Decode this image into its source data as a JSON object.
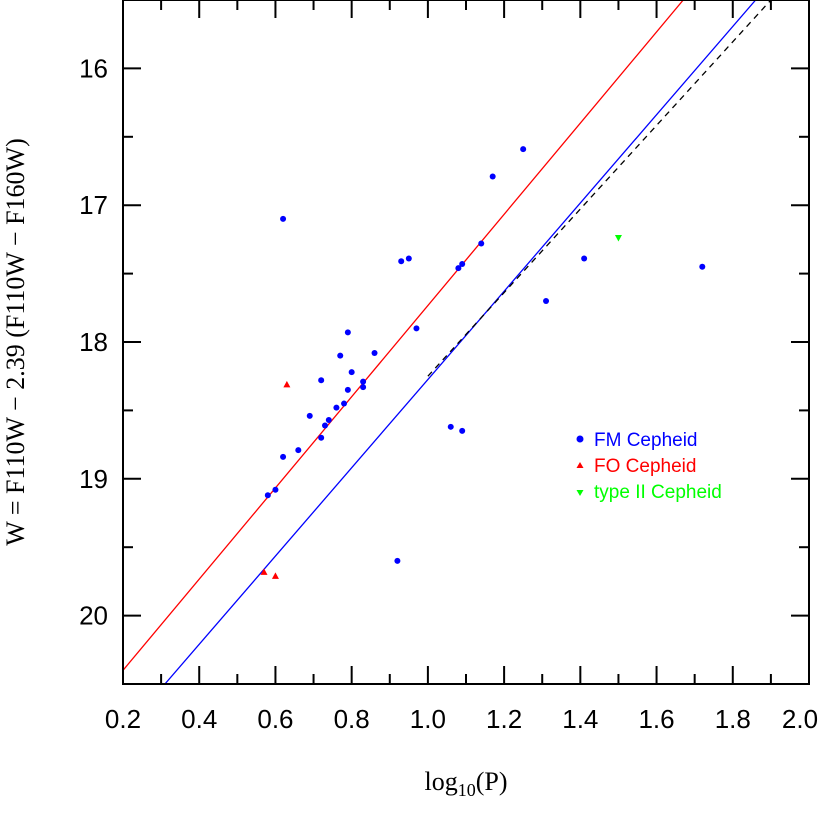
{
  "chart_data": {
    "type": "scatter",
    "xlabel": "log",
    "xlabel_sub": "10",
    "xlabel_tail": "(P)",
    "ylabel": "W = F110W − 2.39 (F110W − F160W)",
    "xlim": [
      0.2,
      2.0
    ],
    "ylim": [
      20.5,
      15.5
    ],
    "y_inverted": true,
    "xticks": [
      "0.2",
      "0.4",
      "0.6",
      "0.8",
      "1.0",
      "1.2",
      "1.4",
      "1.6",
      "1.8",
      "2.0"
    ],
    "yticks": [
      "16",
      "17",
      "18",
      "19",
      "20"
    ],
    "legend_position": "right",
    "series": [
      {
        "name": "FM Cepheid",
        "marker": "circle",
        "color": "#0000ff",
        "points": [
          [
            0.58,
            19.12
          ],
          [
            0.6,
            19.08
          ],
          [
            0.62,
            18.84
          ],
          [
            0.62,
            17.1
          ],
          [
            0.66,
            18.79
          ],
          [
            0.69,
            18.54
          ],
          [
            0.72,
            18.28
          ],
          [
            0.72,
            18.7
          ],
          [
            0.73,
            18.61
          ],
          [
            0.74,
            18.57
          ],
          [
            0.76,
            18.48
          ],
          [
            0.77,
            18.1
          ],
          [
            0.78,
            18.45
          ],
          [
            0.79,
            17.93
          ],
          [
            0.79,
            18.35
          ],
          [
            0.8,
            18.22
          ],
          [
            0.83,
            18.29
          ],
          [
            0.83,
            18.33
          ],
          [
            0.86,
            18.08
          ],
          [
            0.92,
            19.6
          ],
          [
            0.93,
            17.41
          ],
          [
            0.95,
            17.39
          ],
          [
            0.97,
            17.9
          ],
          [
            1.06,
            18.62
          ],
          [
            1.08,
            17.46
          ],
          [
            1.09,
            17.43
          ],
          [
            1.09,
            18.65
          ],
          [
            1.14,
            17.28
          ],
          [
            1.17,
            16.79
          ],
          [
            1.25,
            16.59
          ],
          [
            1.31,
            17.7
          ],
          [
            1.41,
            17.39
          ],
          [
            1.72,
            17.45
          ]
        ]
      },
      {
        "name": "FO Cepheid",
        "marker": "triangle-up",
        "color": "#ff0000",
        "points": [
          [
            0.57,
            19.68
          ],
          [
            0.6,
            19.71
          ],
          [
            0.63,
            18.31
          ]
        ]
      },
      {
        "name": "type II Cepheid",
        "marker": "triangle-down",
        "color": "#00ff00",
        "points": [
          [
            1.5,
            17.24
          ]
        ]
      }
    ],
    "lines": [
      {
        "color": "#ff0000",
        "style": "solid",
        "points": [
          [
            0.2,
            20.4
          ],
          [
            1.67,
            15.5
          ]
        ]
      },
      {
        "color": "#0000ff",
        "style": "solid",
        "points": [
          [
            0.31,
            20.5
          ],
          [
            1.86,
            15.5
          ]
        ]
      },
      {
        "color": "#000000",
        "style": "dashed",
        "points": [
          [
            1.0,
            18.25
          ],
          [
            1.9,
            15.5
          ]
        ]
      }
    ]
  }
}
